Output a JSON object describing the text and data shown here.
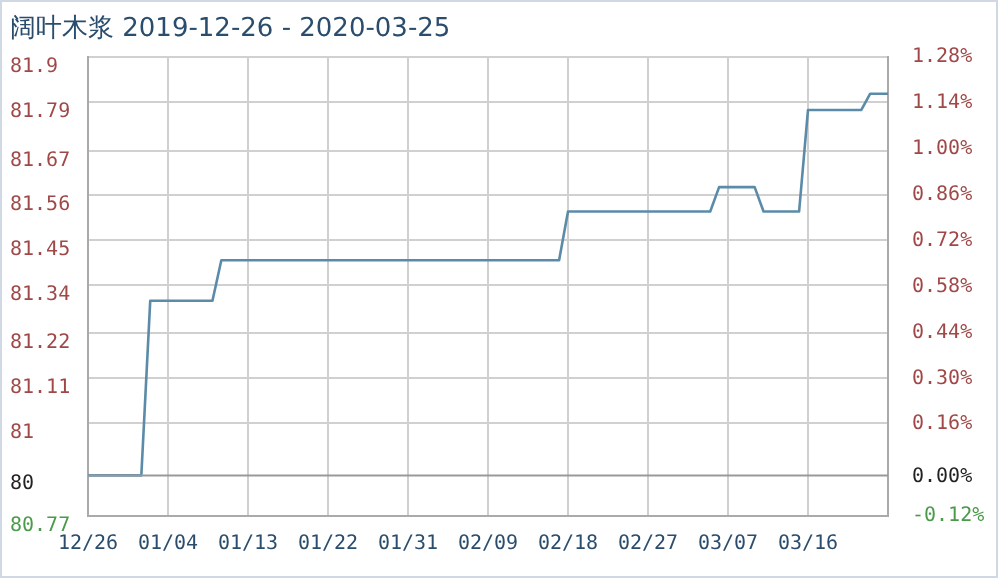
{
  "chart_data": {
    "type": "line",
    "title": "阔叶木浆 2019-12-26 - 2020-03-25",
    "x": [
      "2019-12-26",
      "2020-01-01",
      "2020-01-02",
      "2020-01-09",
      "2020-01-10",
      "2020-02-17",
      "2020-02-18",
      "2020-03-05",
      "2020-03-06",
      "2020-03-10",
      "2020-03-11",
      "2020-03-15",
      "2020-03-16",
      "2020-03-22",
      "2020-03-23",
      "2020-03-25"
    ],
    "series": [
      {
        "color": "#5b8ba8",
        "values": [
          80.87,
          80.87,
          81.3,
          81.3,
          81.4,
          81.4,
          81.52,
          81.52,
          81.58,
          81.58,
          81.52,
          81.52,
          81.77,
          81.77,
          81.81,
          81.81
        ]
      }
    ],
    "xlim": [
      "2019-12-26",
      "2020-03-25"
    ],
    "xticks": [
      {
        "value": "2019-12-26",
        "label": "12/26"
      },
      {
        "value": "2020-01-04",
        "label": "01/04"
      },
      {
        "value": "2020-01-13",
        "label": "01/13"
      },
      {
        "value": "2020-01-22",
        "label": "01/22"
      },
      {
        "value": "2020-01-31",
        "label": "01/31"
      },
      {
        "value": "2020-02-09",
        "label": "02/09"
      },
      {
        "value": "2020-02-18",
        "label": "02/18"
      },
      {
        "value": "2020-02-27",
        "label": "02/27"
      },
      {
        "value": "2020-03-07",
        "label": "03/07"
      },
      {
        "value": "2020-03-16",
        "label": "03/16"
      }
    ],
    "ylim": [
      80.77,
      81.9
    ],
    "yticks": [
      81.9,
      81.79,
      81.67,
      81.56,
      81.45,
      81.34,
      81.22,
      81.11,
      81,
      80.77
    ],
    "y2lim": [
      -0.12,
      1.28
    ],
    "y2ticks": [
      {
        "value": 1.28,
        "label": "1.28%"
      },
      {
        "value": 1.14,
        "label": "1.14%"
      },
      {
        "value": 1,
        "label": "1.00%"
      },
      {
        "value": 0.86,
        "label": "0.86%"
      },
      {
        "value": 0.72,
        "label": "0.72%"
      },
      {
        "value": 0.58,
        "label": "0.58%"
      },
      {
        "value": 0.44,
        "label": "0.44%"
      },
      {
        "value": 0.3,
        "label": "0.30%"
      },
      {
        "value": 0.16,
        "label": "0.16%"
      },
      {
        "value": 0,
        "label": "0.00%"
      },
      {
        "value": -0.12,
        "label": "-0.12%"
      }
    ],
    "ref_lines": [
      {
        "axis": "y",
        "value": 80.87,
        "color": "#999999"
      }
    ],
    "annotations": [
      "80"
    ],
    "grid": true,
    "legend": false,
    "marker": "none",
    "line_style": "solid"
  }
}
